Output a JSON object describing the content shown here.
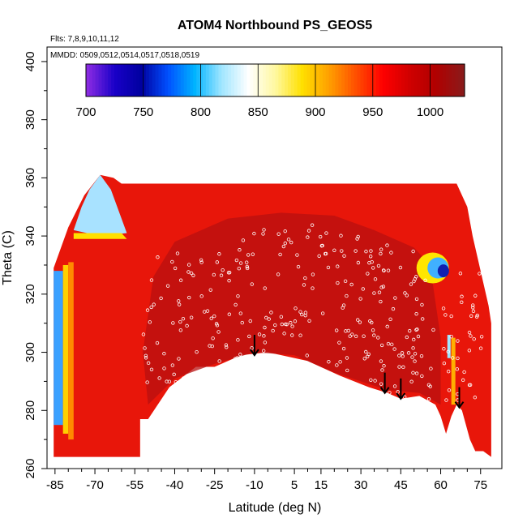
{
  "chart_data": {
    "type": "heatmap",
    "title": "ATOM4 Northbound PS_GEOS5",
    "flights_note": "Flts: 7,8,9,10,11,12",
    "mmdd_note": "MMDD: 0509,0512,0514,0517,0518,0519",
    "xlabel": "Latitude (deg N)",
    "ylabel": "Theta (C)",
    "xlim": [
      -88,
      83
    ],
    "ylim": [
      260,
      405
    ],
    "x_ticks": [
      -85,
      -70,
      -55,
      -40,
      -25,
      -10,
      5,
      15,
      30,
      45,
      60,
      75
    ],
    "x_tick_labels": [
      "-85",
      "-70",
      "-55",
      "-40",
      "-25",
      "-10",
      "5",
      "15",
      "30",
      "45",
      "60",
      "75"
    ],
    "y_ticks": [
      260,
      280,
      300,
      320,
      340,
      360,
      380,
      400
    ],
    "y_tick_labels": [
      "260",
      "280",
      "300",
      "320",
      "340",
      "360",
      "380",
      "400"
    ],
    "colorbar": {
      "ticks": [
        700,
        750,
        800,
        850,
        900,
        950,
        1000
      ],
      "tick_labels": [
        "700",
        "750",
        "800",
        "850",
        "900",
        "950",
        "1000"
      ],
      "range": [
        700,
        1030
      ],
      "colors": [
        "#8a2be2",
        "#1a00c8",
        "#0000a0",
        "#0050ff",
        "#00b4ff",
        "#a0e6ff",
        "#ffffff",
        "#fff8a0",
        "#ffe000",
        "#ffa000",
        "#ff5000",
        "#ff0000",
        "#d00000",
        "#b00000",
        "#8b1a1a"
      ]
    },
    "field_description_colors": {
      "background_high": "#e8160a",
      "core_low": "#b81010",
      "polar_edge": "#3aa0ff"
    },
    "arrows_lat": [
      -10,
      39,
      45,
      67
    ],
    "legend": "none",
    "grid": false
  }
}
